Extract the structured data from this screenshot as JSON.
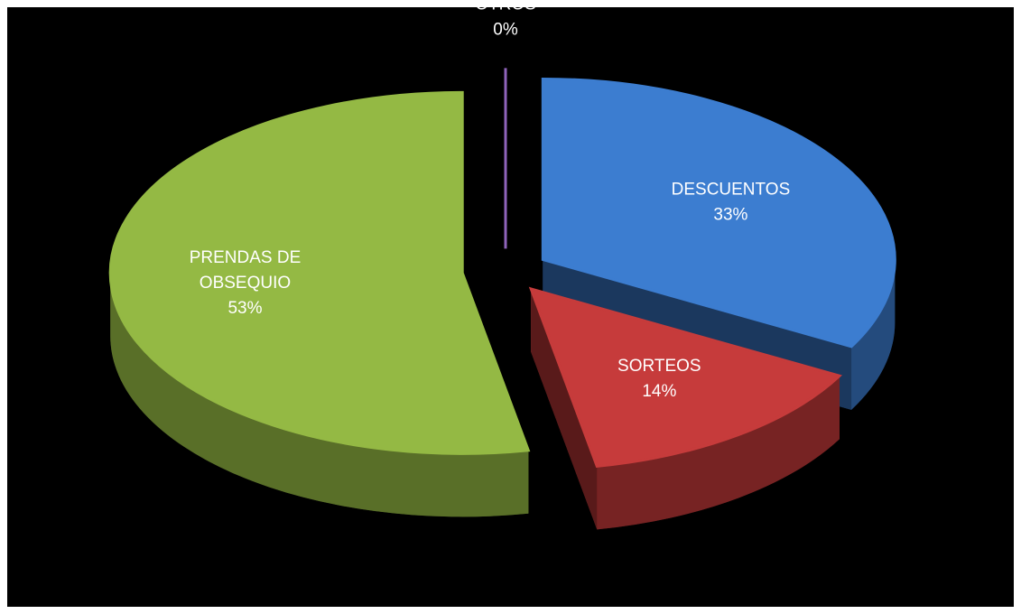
{
  "chart_data": {
    "type": "pie",
    "categories": [
      "DESCUENTOS",
      "SORTEOS",
      "PRENDAS DE OBSEQUIO",
      "OTROS"
    ],
    "values": [
      33,
      14,
      53,
      0
    ],
    "value_labels": [
      "33%",
      "14%",
      "53%",
      "0%"
    ],
    "colors": [
      "#3c7dd0",
      "#c63b3b",
      "#94b944",
      "#8f64bb"
    ]
  }
}
